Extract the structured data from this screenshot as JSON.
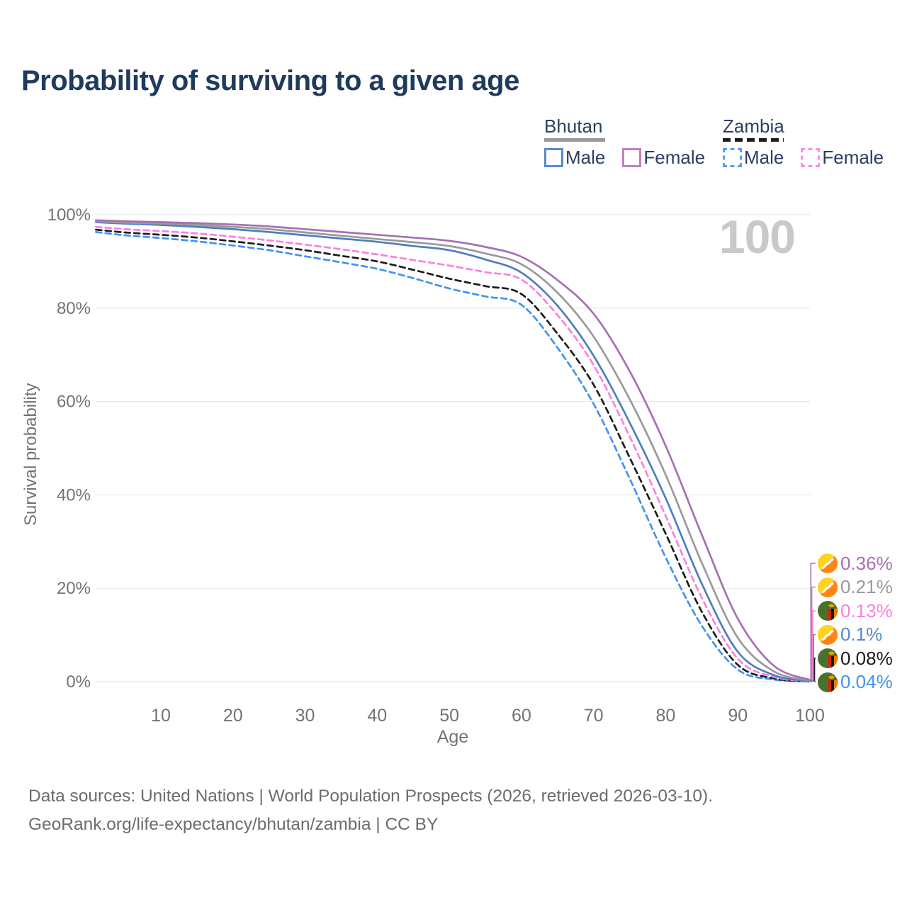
{
  "title": "Probability of surviving to a given age",
  "watermark": "100",
  "legend": {
    "groups": [
      {
        "name": "Bhutan",
        "style": "solid",
        "underline_color": "#9a9a9a",
        "items": [
          {
            "label": "Male",
            "color": "#5a8ac8"
          },
          {
            "label": "Female",
            "color": "#bd80c2"
          }
        ]
      },
      {
        "name": "Zambia",
        "style": "dashed",
        "underline_color": "#1c1c1c",
        "items": [
          {
            "label": "Male",
            "color": "#5b9bff"
          },
          {
            "label": "Female",
            "color": "#ff8fe5"
          }
        ]
      }
    ]
  },
  "chart_data": {
    "type": "line",
    "title": "Probability of surviving to a given age",
    "xlabel": "Age",
    "ylabel": "Survival probability",
    "xlim": [
      0,
      100
    ],
    "ylim": [
      0,
      100
    ],
    "grid": "horizontal-only",
    "x": [
      1,
      5,
      10,
      15,
      20,
      25,
      30,
      35,
      40,
      45,
      50,
      55,
      60,
      65,
      70,
      75,
      80,
      85,
      90,
      95,
      100
    ],
    "xticks": [
      {
        "v": 10,
        "label": "10"
      },
      {
        "v": 20,
        "label": "20"
      },
      {
        "v": 30,
        "label": "30"
      },
      {
        "v": 40,
        "label": "40"
      },
      {
        "v": 50,
        "label": "50"
      },
      {
        "v": 60,
        "label": "60"
      },
      {
        "v": 70,
        "label": "70"
      },
      {
        "v": 80,
        "label": "80"
      },
      {
        "v": 90,
        "label": "90"
      },
      {
        "v": 100,
        "label": "100"
      }
    ],
    "yticks": [
      {
        "v": 0,
        "label": "0%"
      },
      {
        "v": 20,
        "label": "20%"
      },
      {
        "v": 40,
        "label": "40%"
      },
      {
        "v": 60,
        "label": "60%"
      },
      {
        "v": 80,
        "label": "80%"
      },
      {
        "v": 100,
        "label": "100%"
      }
    ],
    "series": [
      {
        "name": "Zambia Male",
        "country": "Zambia",
        "sex": "Male",
        "style": "dashed",
        "color": "#4292f2",
        "values": [
          96.3,
          95.6,
          95.0,
          94.3,
          93.4,
          92.4,
          91.1,
          89.8,
          88.4,
          86.4,
          84.2,
          82.5,
          80.7,
          71.5,
          59.5,
          43.5,
          26.6,
          12.0,
          2.6,
          0.45,
          0.04
        ]
      },
      {
        "name": "Zambia Both sexes",
        "country": "Zambia",
        "sex": "Both",
        "style": "dashed",
        "color": "#1c1c1c",
        "values": [
          96.8,
          96.2,
          95.7,
          95.1,
          94.3,
          93.4,
          92.4,
          91.2,
          90.0,
          88.2,
          86.3,
          84.7,
          83.0,
          74.5,
          63.6,
          48.0,
          31.7,
          15.0,
          3.6,
          0.7,
          0.08
        ]
      },
      {
        "name": "Zambia Female",
        "country": "Zambia",
        "sex": "Female",
        "style": "dashed",
        "color": "#fb80e0",
        "values": [
          97.4,
          96.9,
          96.5,
          96.0,
          95.3,
          94.5,
          93.6,
          92.6,
          91.5,
          90.3,
          89.1,
          87.7,
          86.1,
          78.5,
          67.8,
          52.5,
          35.5,
          18.0,
          4.9,
          1.0,
          0.13
        ]
      },
      {
        "name": "Bhutan Male",
        "country": "Bhutan",
        "sex": "Male",
        "style": "solid",
        "color": "#4d7ec0",
        "values": [
          98.4,
          98.1,
          97.8,
          97.4,
          96.9,
          96.3,
          95.6,
          94.9,
          94.2,
          93.3,
          92.4,
          90.4,
          87.6,
          80.5,
          69.8,
          55.5,
          39.3,
          21.0,
          6.4,
          1.4,
          0.1
        ]
      },
      {
        "name": "Bhutan Both sexes",
        "country": "Bhutan",
        "sex": "Both",
        "style": "solid",
        "color": "#9a9a9a",
        "values": [
          98.6,
          98.3,
          98.1,
          97.8,
          97.4,
          96.9,
          96.2,
          95.5,
          94.8,
          94.1,
          93.3,
          91.7,
          89.4,
          83.3,
          73.9,
          60.5,
          44.3,
          25.5,
          9.4,
          2.2,
          0.21
        ]
      },
      {
        "name": "Bhutan Female",
        "country": "Bhutan",
        "sex": "Female",
        "style": "solid",
        "color": "#a76fb2",
        "values": [
          98.8,
          98.6,
          98.4,
          98.2,
          97.9,
          97.5,
          96.9,
          96.3,
          95.7,
          95.1,
          94.4,
          93.1,
          91.0,
          86.0,
          78.8,
          66.5,
          50.5,
          31.5,
          13.5,
          3.4,
          0.36
        ]
      }
    ],
    "end_labels": [
      {
        "label": "0.36%",
        "value": 0.36,
        "color": "#a76fb2",
        "flag": "bhutan",
        "series": "Bhutan Female"
      },
      {
        "label": "0.21%",
        "value": 0.21,
        "color": "#9a9a9a",
        "flag": "bhutan",
        "series": "Bhutan Both sexes"
      },
      {
        "label": "0.13%",
        "value": 0.13,
        "color": "#fb80e0",
        "flag": "zambia",
        "series": "Zambia Female"
      },
      {
        "label": "0.1%",
        "value": 0.1,
        "color": "#5b87c9",
        "flag": "bhutan",
        "series": "Bhutan Male"
      },
      {
        "label": "0.08%",
        "value": 0.08,
        "color": "#1c1c1c",
        "flag": "zambia",
        "series": "Zambia Both sexes"
      },
      {
        "label": "0.04%",
        "value": 0.04,
        "color": "#4292f2",
        "flag": "zambia",
        "series": "Zambia Male"
      }
    ],
    "colors": {
      "grid": "#e7e7e7",
      "tick_text": "#737373",
      "title_text": "#1f3a5e",
      "watermark": "#c9c9c9"
    }
  },
  "footer": {
    "line1": "Data sources: United Nations | World Population Prospects (2026, retrieved 2026-03-10).",
    "line2": "GeoRank.org/life-expectancy/bhutan/zambia | CC BY"
  }
}
